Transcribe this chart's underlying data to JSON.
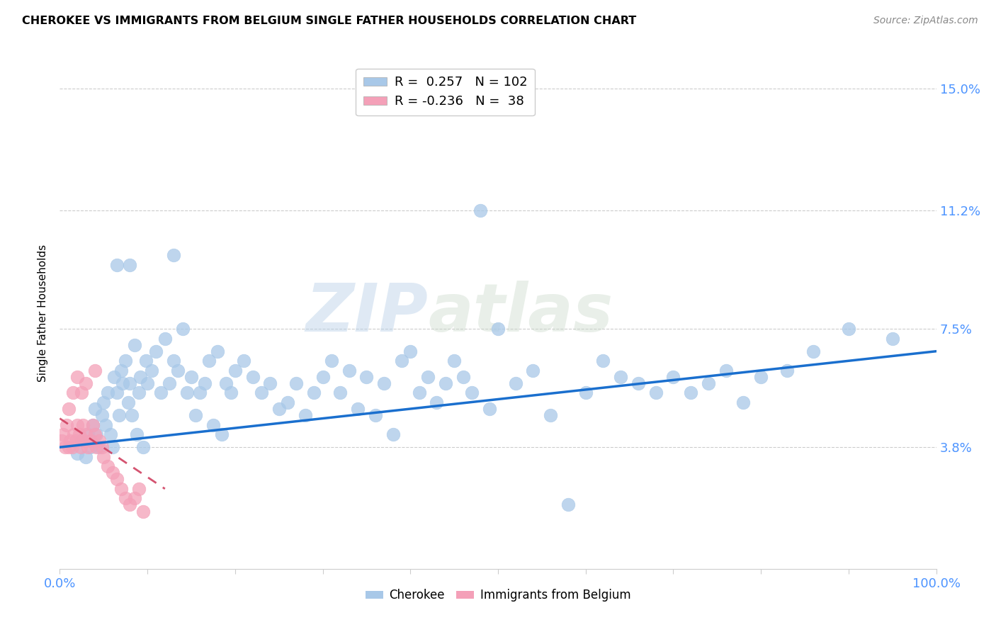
{
  "title": "CHEROKEE VS IMMIGRANTS FROM BELGIUM SINGLE FATHER HOUSEHOLDS CORRELATION CHART",
  "source": "Source: ZipAtlas.com",
  "ylabel": "Single Father Households",
  "yticks": [
    "3.8%",
    "7.5%",
    "11.2%",
    "15.0%"
  ],
  "ytick_vals": [
    0.038,
    0.075,
    0.112,
    0.15
  ],
  "xlim": [
    0.0,
    1.0
  ],
  "ylim": [
    0.0,
    0.16
  ],
  "legend_label_cherokee": "Cherokee",
  "legend_label_belgium": "Immigrants from Belgium",
  "blue_dot_color": "#a8c8e8",
  "pink_dot_color": "#f4a0b8",
  "blue_line_color": "#1a6fce",
  "pink_line_color": "#d04060",
  "watermark_zip": "ZIP",
  "watermark_atlas": "atlas",
  "axis_color": "#4d94ff",
  "blue_scatter_x": [
    0.02,
    0.025,
    0.03,
    0.032,
    0.035,
    0.038,
    0.04,
    0.042,
    0.045,
    0.048,
    0.05,
    0.052,
    0.055,
    0.058,
    0.06,
    0.062,
    0.065,
    0.068,
    0.07,
    0.072,
    0.075,
    0.078,
    0.08,
    0.082,
    0.085,
    0.088,
    0.09,
    0.092,
    0.095,
    0.098,
    0.1,
    0.105,
    0.11,
    0.115,
    0.12,
    0.125,
    0.13,
    0.135,
    0.14,
    0.145,
    0.15,
    0.155,
    0.16,
    0.165,
    0.17,
    0.175,
    0.18,
    0.185,
    0.19,
    0.195,
    0.2,
    0.21,
    0.22,
    0.23,
    0.24,
    0.25,
    0.26,
    0.27,
    0.28,
    0.29,
    0.3,
    0.31,
    0.32,
    0.33,
    0.34,
    0.35,
    0.36,
    0.37,
    0.38,
    0.39,
    0.4,
    0.41,
    0.42,
    0.43,
    0.44,
    0.45,
    0.46,
    0.47,
    0.48,
    0.49,
    0.5,
    0.52,
    0.54,
    0.56,
    0.58,
    0.6,
    0.62,
    0.64,
    0.66,
    0.68,
    0.7,
    0.72,
    0.74,
    0.76,
    0.78,
    0.8,
    0.83,
    0.86,
    0.9,
    0.95,
    0.065,
    0.08,
    0.13
  ],
  "blue_scatter_y": [
    0.036,
    0.04,
    0.035,
    0.042,
    0.038,
    0.045,
    0.05,
    0.042,
    0.038,
    0.048,
    0.052,
    0.045,
    0.055,
    0.042,
    0.038,
    0.06,
    0.055,
    0.048,
    0.062,
    0.058,
    0.065,
    0.052,
    0.058,
    0.048,
    0.07,
    0.042,
    0.055,
    0.06,
    0.038,
    0.065,
    0.058,
    0.062,
    0.068,
    0.055,
    0.072,
    0.058,
    0.065,
    0.062,
    0.075,
    0.055,
    0.06,
    0.048,
    0.055,
    0.058,
    0.065,
    0.045,
    0.068,
    0.042,
    0.058,
    0.055,
    0.062,
    0.065,
    0.06,
    0.055,
    0.058,
    0.05,
    0.052,
    0.058,
    0.048,
    0.055,
    0.06,
    0.065,
    0.055,
    0.062,
    0.05,
    0.06,
    0.048,
    0.058,
    0.042,
    0.065,
    0.068,
    0.055,
    0.06,
    0.052,
    0.058,
    0.065,
    0.06,
    0.055,
    0.112,
    0.05,
    0.075,
    0.058,
    0.062,
    0.048,
    0.02,
    0.055,
    0.065,
    0.06,
    0.058,
    0.055,
    0.06,
    0.055,
    0.058,
    0.062,
    0.052,
    0.06,
    0.062,
    0.068,
    0.075,
    0.072,
    0.095,
    0.095,
    0.098
  ],
  "pink_scatter_x": [
    0.002,
    0.004,
    0.006,
    0.008,
    0.01,
    0.012,
    0.014,
    0.016,
    0.018,
    0.02,
    0.022,
    0.024,
    0.026,
    0.028,
    0.03,
    0.032,
    0.035,
    0.038,
    0.04,
    0.042,
    0.045,
    0.048,
    0.05,
    0.055,
    0.06,
    0.065,
    0.07,
    0.075,
    0.08,
    0.085,
    0.09,
    0.095,
    0.01,
    0.015,
    0.02,
    0.025,
    0.03,
    0.04
  ],
  "pink_scatter_y": [
    0.04,
    0.042,
    0.038,
    0.045,
    0.038,
    0.04,
    0.038,
    0.042,
    0.04,
    0.045,
    0.042,
    0.038,
    0.045,
    0.04,
    0.042,
    0.038,
    0.04,
    0.045,
    0.042,
    0.038,
    0.04,
    0.038,
    0.035,
    0.032,
    0.03,
    0.028,
    0.025,
    0.022,
    0.02,
    0.022,
    0.025,
    0.018,
    0.05,
    0.055,
    0.06,
    0.055,
    0.058,
    0.062
  ],
  "blue_trend_x": [
    0.0,
    1.0
  ],
  "blue_trend_y_start": 0.038,
  "blue_trend_y_end": 0.068,
  "pink_trend_x": [
    0.0,
    0.12
  ],
  "pink_trend_y_start": 0.047,
  "pink_trend_y_end": 0.025
}
